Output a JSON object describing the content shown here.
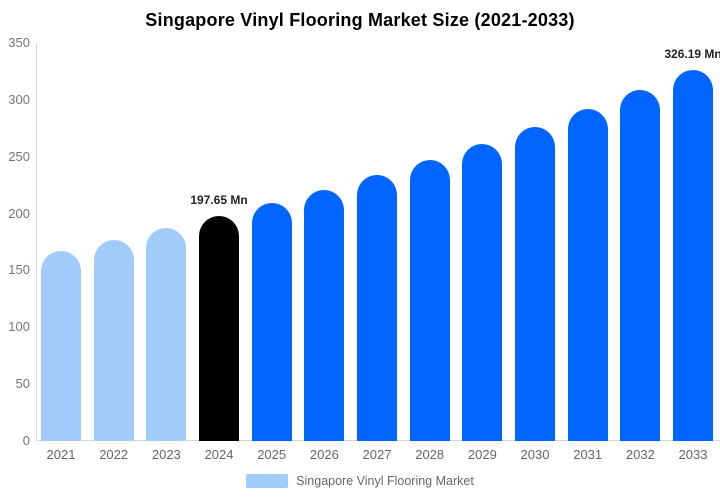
{
  "page": {
    "background": "#ffffff"
  },
  "colors": {
    "bar_light_blue": "#a0cbfb",
    "bar_black": "#000000",
    "bar_blue": "#0066ff",
    "axis_line": "#d8d8d8",
    "axis_tick_text": "#757575",
    "x_label_text": "#666666",
    "value_label_text": "#222222",
    "title_text": "#000000",
    "legend_text": "#666666"
  },
  "chart_data": {
    "type": "bar",
    "title": "Singapore Vinyl Flooring Market Size (2021-2033)",
    "unit": "Mn",
    "categories": [
      "2021",
      "2022",
      "2023",
      "2024",
      "2025",
      "2026",
      "2027",
      "2028",
      "2029",
      "2030",
      "2031",
      "2032",
      "2033"
    ],
    "series": [
      {
        "name": "Singapore Vinyl Flooring Market",
        "values": [
          167.3,
          176.9,
          186.9,
          197.65,
          208.9,
          220.9,
          233.5,
          246.9,
          261.0,
          276.0,
          291.8,
          308.5,
          326.19
        ]
      }
    ],
    "bar_colors": [
      "#a0cbfb",
      "#a0cbfb",
      "#a0cbfb",
      "#000000",
      "#0066ff",
      "#0066ff",
      "#0066ff",
      "#0066ff",
      "#0066ff",
      "#0066ff",
      "#0066ff",
      "#0066ff",
      "#0066ff"
    ],
    "value_labels": [
      {
        "category": "2024",
        "text": "197.65 Mn"
      },
      {
        "category": "2033",
        "text": "326.19 Mn"
      }
    ],
    "y_axis": {
      "min": 0,
      "max": 350,
      "tick_step": 50,
      "ticks": [
        0,
        50,
        100,
        150,
        200,
        250,
        300,
        350
      ]
    },
    "grid": false,
    "legend": {
      "position": "bottom",
      "items": [
        {
          "label": "Singapore Vinyl Flooring Market",
          "swatch_color": "#a0cbfb"
        }
      ]
    }
  }
}
